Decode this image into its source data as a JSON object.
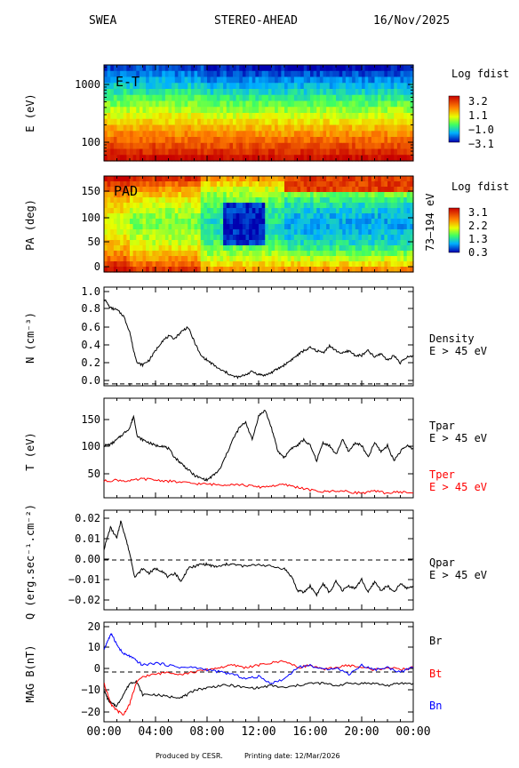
{
  "header": {
    "instrument": "SWEA",
    "spacecraft": "STEREO-AHEAD",
    "date": "16/Nov/2025"
  },
  "footer": {
    "produced_by": "Produced by CESR.",
    "printing_date": "Printing date: 12/Mar/2026"
  },
  "time_axis": {
    "range_hours": [
      0,
      24
    ],
    "ticks": [
      "00:00",
      "04:00",
      "08:00",
      "12:00",
      "16:00",
      "20:00",
      "00:00"
    ]
  },
  "chart_data": [
    {
      "type": "heatmap",
      "panel_label": "E-T",
      "ylabel": "E (eV)",
      "yscale": "log",
      "yticks": [
        "1000",
        "100"
      ],
      "colorbar": {
        "title": "Log fdist",
        "ticks": [
          "3.2",
          "1.1",
          "−1.0",
          "−3.1"
        ]
      },
      "colors": {
        "high": "#c00000",
        "low": "#0000c8"
      }
    },
    {
      "type": "heatmap",
      "panel_label": "PAD",
      "ylabel": "PA (deg)",
      "ylim": [
        0,
        180
      ],
      "yticks": [
        "150",
        "100",
        "50",
        "0"
      ],
      "right_label": "73–194 eV",
      "colorbar": {
        "title": "Log fdist",
        "ticks": [
          "3.1",
          "2.2",
          "1.3",
          "0.3"
        ]
      }
    },
    {
      "type": "line",
      "ylabel": "N (cm⁻³)",
      "ylim": [
        -0.02,
        1.02
      ],
      "yticks": [
        "1.0",
        "0.8",
        "0.6",
        "0.4",
        "0.2",
        "0.0"
      ],
      "series": [
        {
          "name": "Density",
          "color": "#000000",
          "x": [
            0,
            0.5,
            1,
            1.5,
            2,
            2.3,
            2.6,
            3,
            3.5,
            4,
            4.5,
            5,
            5.5,
            6,
            6.5,
            7,
            7.5,
            8,
            8.5,
            9,
            9.5,
            10,
            10.5,
            11,
            11.5,
            12,
            12.5,
            13,
            13.5,
            14,
            14.5,
            15,
            15.5,
            16,
            16.5,
            17,
            17.5,
            18,
            18.5,
            19,
            19.5,
            20,
            20.5,
            21,
            21.5,
            22,
            22.5,
            23,
            23.5,
            24
          ],
          "values": [
            0.9,
            0.8,
            0.78,
            0.72,
            0.55,
            0.35,
            0.22,
            0.2,
            0.25,
            0.35,
            0.45,
            0.5,
            0.48,
            0.55,
            0.6,
            0.45,
            0.3,
            0.25,
            0.2,
            0.15,
            0.12,
            0.08,
            0.07,
            0.1,
            0.13,
            0.1,
            0.09,
            0.12,
            0.16,
            0.2,
            0.25,
            0.3,
            0.35,
            0.38,
            0.35,
            0.33,
            0.4,
            0.35,
            0.32,
            0.35,
            0.3,
            0.3,
            0.35,
            0.28,
            0.32,
            0.25,
            0.3,
            0.22,
            0.28,
            0.3
          ]
        }
      ],
      "legend": [
        "Density",
        "E > 45 eV"
      ],
      "reference_line": 0
    },
    {
      "type": "line",
      "ylabel": "T (eV)",
      "ylim": [
        22,
        190
      ],
      "yticks": [
        "150",
        "100",
        "50"
      ],
      "series": [
        {
          "name": "Tpar",
          "color": "#000000",
          "x": [
            0,
            0.5,
            1,
            1.5,
            2,
            2.3,
            2.6,
            3,
            3.5,
            4,
            4.5,
            5,
            5.5,
            6,
            6.5,
            7,
            7.5,
            8,
            8.5,
            9,
            9.5,
            10,
            10.5,
            11,
            11.5,
            12,
            12.5,
            13,
            13.5,
            14,
            14.5,
            15,
            15.5,
            16,
            16.5,
            17,
            17.5,
            18,
            18.5,
            19,
            19.5,
            20,
            20.5,
            21,
            21.5,
            22,
            22.5,
            23,
            23.5,
            24
          ],
          "values": [
            110,
            112,
            120,
            130,
            140,
            160,
            125,
            120,
            115,
            110,
            110,
            105,
            90,
            80,
            70,
            60,
            55,
            52,
            60,
            70,
            95,
            120,
            140,
            150,
            120,
            160,
            170,
            140,
            100,
            90,
            105,
            110,
            120,
            110,
            85,
            115,
            110,
            95,
            120,
            100,
            115,
            110,
            90,
            115,
            100,
            110,
            85,
            100,
            110,
            105
          ]
        },
        {
          "name": "Tper",
          "color": "#ff0000",
          "x": [
            0,
            1,
            2,
            3,
            4,
            5,
            6,
            7,
            8,
            9,
            10,
            11,
            12,
            13,
            14,
            15,
            16,
            17,
            18,
            19,
            20,
            21,
            22,
            23,
            24
          ],
          "values": [
            50,
            52,
            50,
            54,
            52,
            50,
            48,
            46,
            45,
            44,
            45,
            43,
            40,
            42,
            44,
            40,
            35,
            32,
            34,
            32,
            30,
            33,
            30,
            32,
            30
          ]
        }
      ],
      "legend": [
        "Tpar",
        "E > 45 eV",
        "Tper",
        "E > 45 eV"
      ]
    },
    {
      "type": "line",
      "ylabel": "Q (erg.sec⁻¹.cm⁻²)",
      "ylim": [
        -0.023,
        0.023
      ],
      "yticks": [
        "0.02",
        "0.01",
        "0.00",
        "−0.01",
        "−0.02"
      ],
      "series": [
        {
          "name": "Qpar",
          "color": "#000000",
          "x": [
            0,
            0.5,
            1,
            1.3,
            1.6,
            2,
            2.4,
            3,
            3.5,
            4,
            4.5,
            5,
            5.5,
            6,
            6.5,
            7,
            7.5,
            8,
            8.5,
            9,
            9.5,
            10,
            11,
            12,
            13,
            14,
            14.6,
            15,
            15.5,
            16,
            16.5,
            17,
            17.5,
            18,
            18.5,
            19,
            19.5,
            20,
            20.5,
            21,
            21.5,
            22,
            22.5,
            23,
            23.5,
            24
          ],
          "values": [
            0.005,
            0.015,
            0.01,
            0.018,
            0.012,
            0.003,
            -0.008,
            -0.004,
            -0.006,
            -0.004,
            -0.005,
            -0.008,
            -0.006,
            -0.01,
            -0.004,
            -0.003,
            -0.002,
            -0.002,
            -0.003,
            -0.003,
            -0.002,
            -0.002,
            -0.003,
            -0.002,
            -0.003,
            -0.004,
            -0.008,
            -0.014,
            -0.015,
            -0.012,
            -0.016,
            -0.011,
            -0.015,
            -0.01,
            -0.014,
            -0.012,
            -0.013,
            -0.009,
            -0.015,
            -0.01,
            -0.014,
            -0.012,
            -0.015,
            -0.011,
            -0.013,
            -0.012
          ]
        }
      ],
      "legend": [
        "Qpar",
        "E > 45 eV"
      ],
      "reference_line": 0
    },
    {
      "type": "line",
      "ylabel": "MAG B(nT)",
      "ylim": [
        -22,
        22
      ],
      "yticks": [
        "20",
        "10",
        "0",
        "−10",
        "−20"
      ],
      "series": [
        {
          "name": "Br",
          "color": "#000000",
          "x": [
            0,
            0.3,
            0.6,
            1,
            1.5,
            2,
            2.5,
            3,
            4,
            5,
            6,
            6.5,
            7,
            8,
            9,
            10,
            11,
            12,
            13,
            14,
            15,
            16,
            17,
            18,
            19,
            20,
            21,
            22,
            23,
            24
          ],
          "values": [
            -8,
            -12,
            -14,
            -15,
            -10,
            -5,
            -4,
            -10,
            -10,
            -11,
            -11,
            -10,
            -8,
            -7,
            -6,
            -6,
            -7,
            -7,
            -6,
            -7,
            -6,
            -5,
            -5,
            -6,
            -5,
            -5,
            -5,
            -6,
            -5,
            -5
          ]
        },
        {
          "name": "Bt",
          "color": "#ff0000",
          "x": [
            0,
            0.3,
            0.6,
            1,
            1.5,
            2,
            2.5,
            3,
            4,
            5,
            6,
            7,
            8,
            9,
            10,
            11,
            12,
            13,
            14,
            15,
            16,
            17,
            18,
            19,
            20,
            21,
            22,
            23,
            24
          ],
          "values": [
            -5,
            -10,
            -15,
            -17,
            -19,
            -14,
            -5,
            -2,
            -1,
            0,
            -1,
            0,
            1,
            2,
            3,
            2,
            3,
            4,
            5,
            2,
            3,
            1,
            2,
            3,
            2,
            1,
            2,
            1,
            2
          ]
        },
        {
          "name": "Bn",
          "color": "#0000ff",
          "x": [
            0,
            0.3,
            0.6,
            1,
            1.5,
            2,
            2.5,
            3,
            4,
            5,
            6,
            7,
            8,
            9,
            10,
            11,
            12,
            13,
            14,
            15,
            16,
            17,
            18,
            19,
            20,
            21,
            22,
            23,
            24
          ],
          "values": [
            10,
            14,
            17,
            12,
            8,
            7,
            5,
            3,
            4,
            3,
            2,
            2,
            1,
            0,
            -1,
            -3,
            -2,
            -5,
            -3,
            2,
            3,
            1,
            2,
            -1,
            3,
            1,
            2,
            0,
            2
          ]
        }
      ],
      "legend": [
        "Br",
        "Bt",
        "Bn"
      ],
      "reference_line": 0
    }
  ]
}
